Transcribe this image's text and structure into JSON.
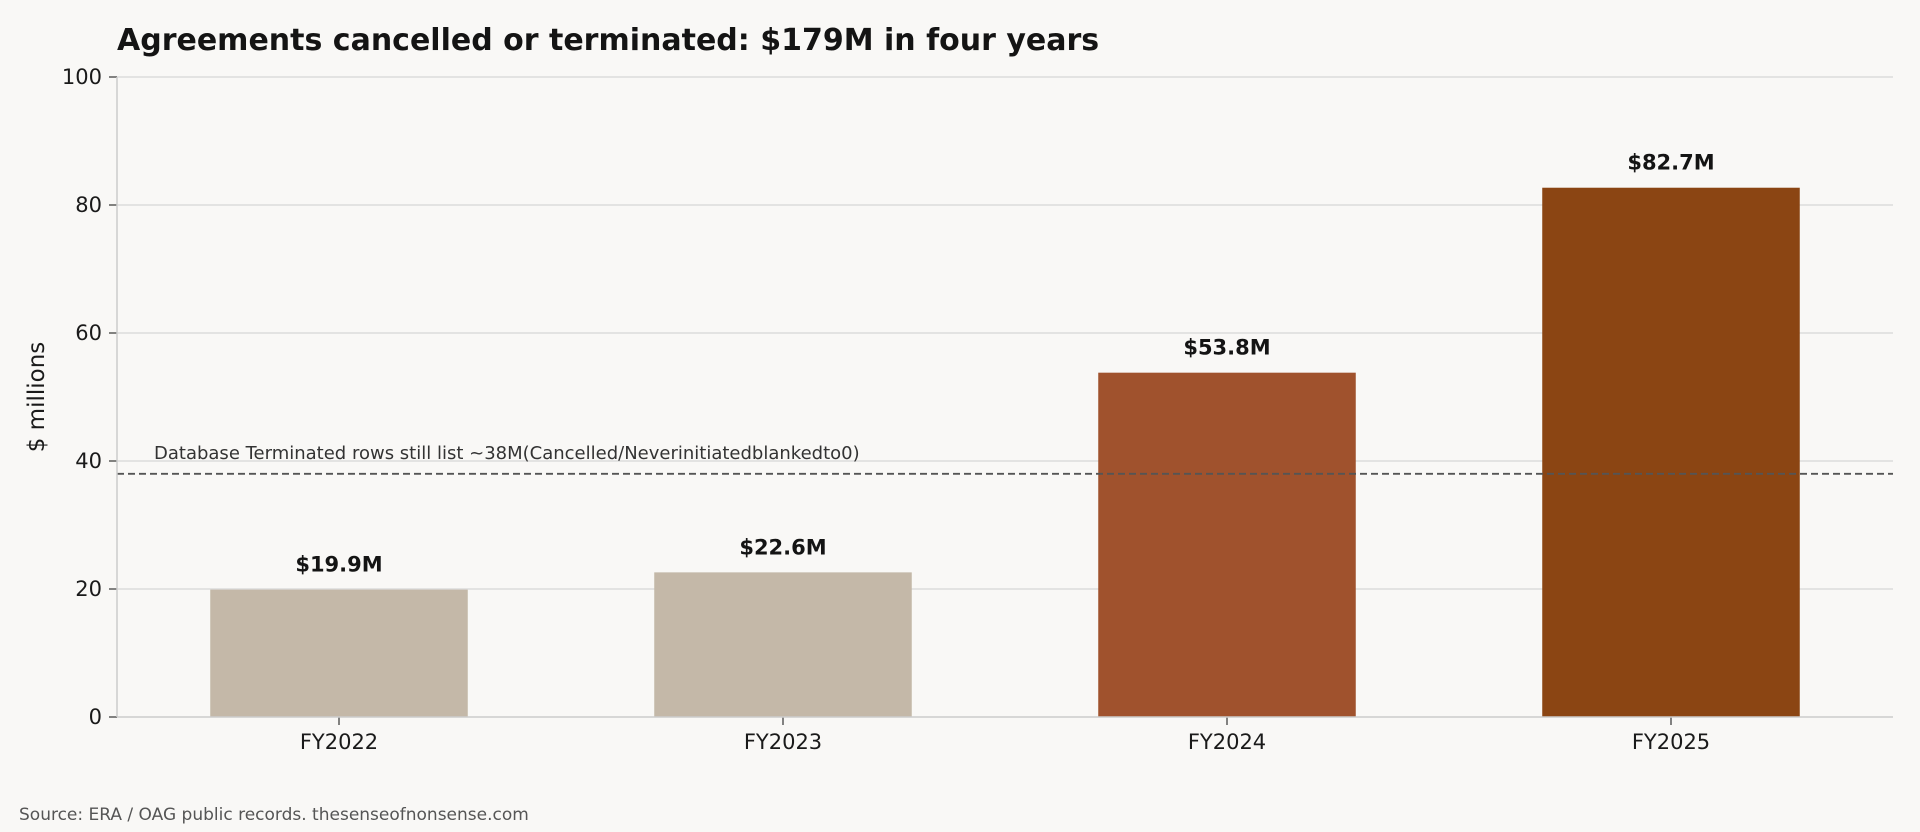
{
  "chart_data": {
    "type": "bar",
    "title": "Agreements cancelled or terminated: $179M in four years",
    "ylabel": "$ millions",
    "xlabel": "",
    "ylim": [
      0,
      100
    ],
    "yticks": [
      0,
      20,
      40,
      60,
      80,
      100
    ],
    "grid": true,
    "categories": [
      "FY2022",
      "FY2023",
      "FY2024",
      "FY2025"
    ],
    "values": [
      19.9,
      22.6,
      53.8,
      82.7
    ],
    "data_labels": [
      "$19.9M",
      "$22.6M",
      "$53.8M",
      "$82.7M"
    ],
    "colors": [
      "#c4b8a8",
      "#c4b8a8",
      "#a0522d",
      "#8b4513"
    ],
    "reference_line": {
      "value": 38,
      "label": "Database Terminated rows still list ~38M(Cancelled/Neverinitiatedblankedto0)",
      "color": "#555555"
    },
    "source": "Source: ERA / OAG public records. thesenseofnonsense.com"
  }
}
